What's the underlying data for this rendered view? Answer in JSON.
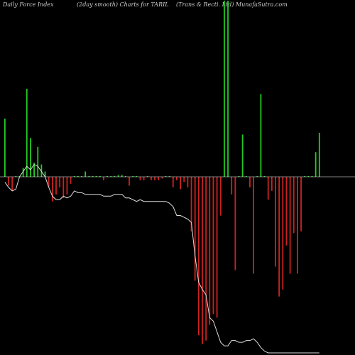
{
  "header": {
    "left": "Daily Force  Index",
    "center": "(2day smooth) Charts for TARIL",
    "right": "(Trans & Recti. Ltd) MunafaSutra.com"
  },
  "colors": {
    "positive": "#22cc22",
    "negative": "#cc2222",
    "line": "#dddddd",
    "baseline": "#ffffff",
    "background": "#000000"
  },
  "chart_data": {
    "type": "bar",
    "title": "Daily Force Index (2day smooth) Charts for TARIL",
    "ylim": [
      -100,
      100
    ],
    "series": [
      {
        "values": [
          33,
          -5,
          -8,
          0,
          0,
          5,
          50,
          22,
          8,
          17,
          7,
          3,
          -6,
          -14,
          -10,
          -6,
          -12,
          -10,
          -4,
          0,
          0,
          0,
          3,
          0,
          0,
          0,
          0,
          -2,
          0,
          0,
          0,
          1,
          1,
          0,
          -5,
          0,
          0,
          -2,
          -2,
          0,
          -2,
          -2,
          -2,
          -1,
          0,
          0,
          -6,
          -2,
          -7,
          -3,
          -6,
          -31,
          -59,
          -90,
          -95,
          -93,
          -84,
          -78,
          -80,
          -22,
          100,
          100,
          -10,
          -53,
          0,
          24,
          0,
          -6,
          -55,
          0,
          47,
          0,
          -13,
          -8,
          -51,
          -68,
          -64,
          -39,
          -55,
          -32,
          -55,
          -31,
          0,
          0,
          0,
          14,
          25
        ]
      },
      {
        "values": [
          -3,
          -6,
          -8,
          -7,
          0,
          3,
          6,
          4,
          7,
          6,
          3,
          0,
          -6,
          -11,
          -13,
          -13,
          -11,
          -12,
          -11,
          -8,
          -9,
          -9,
          -10,
          -10,
          -10,
          -10,
          -10,
          -11,
          -11,
          -11,
          -10,
          -10,
          -10,
          -12,
          -12,
          -13,
          -14,
          -13,
          -14,
          -14,
          -14,
          -14,
          -14,
          -14,
          -14,
          -15,
          -17,
          -22,
          -22,
          -23,
          -24,
          -26,
          -45,
          -60,
          -64,
          -67,
          -80,
          -82,
          -88,
          -94,
          -96,
          -96,
          -93,
          -93,
          -94,
          -94,
          -93,
          -93,
          -92,
          -94,
          -97,
          -99,
          -100,
          -100,
          -100,
          -100,
          -100,
          -100,
          -100,
          -100,
          -100,
          -100,
          -100,
          -100,
          -100,
          -100,
          -100
        ]
      }
    ]
  }
}
